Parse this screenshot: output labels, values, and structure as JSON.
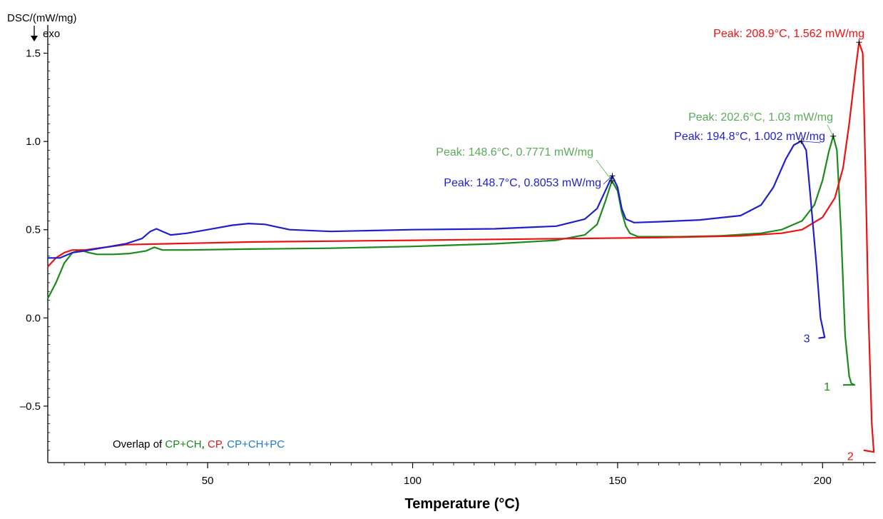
{
  "chart_data": {
    "type": "line",
    "ylabel": "DSC/(mW/mg)",
    "direction_label": "exo",
    "xlabel": "Temperature (°C)",
    "xlim": [
      11,
      213
    ],
    "ylim": [
      -0.82,
      1.66
    ],
    "x_ticks": [
      50,
      100,
      150,
      200
    ],
    "y_ticks": [
      {
        "value": 1.5,
        "label": "1.5"
      },
      {
        "value": 1.0,
        "label": "1.0"
      },
      {
        "value": 0.5,
        "label": "0.5"
      },
      {
        "value": 0.0,
        "label": "0.0"
      },
      {
        "value": -0.5,
        "label": "–0.5"
      }
    ],
    "legend": {
      "prefix": "Overlap of ",
      "items": [
        {
          "text": "CP+CH",
          "color": "#1a8a1a"
        },
        {
          "text": ", ",
          "color": "#000000"
        },
        {
          "text": "CP",
          "color": "#ee1111"
        },
        {
          "text": ", ",
          "color": "#000000"
        },
        {
          "text": "CP+CH+PC",
          "color": "#1f78c8"
        }
      ]
    },
    "series": [
      {
        "label": "1",
        "color": "#1a8a1a",
        "points": [
          [
            11,
            0.11
          ],
          [
            13,
            0.2
          ],
          [
            15,
            0.31
          ],
          [
            17,
            0.37
          ],
          [
            19,
            0.385
          ],
          [
            21,
            0.37
          ],
          [
            23,
            0.36
          ],
          [
            27,
            0.36
          ],
          [
            31,
            0.365
          ],
          [
            35,
            0.38
          ],
          [
            37,
            0.4
          ],
          [
            39,
            0.385
          ],
          [
            45,
            0.385
          ],
          [
            60,
            0.39
          ],
          [
            80,
            0.395
          ],
          [
            100,
            0.405
          ],
          [
            120,
            0.42
          ],
          [
            135,
            0.44
          ],
          [
            142,
            0.47
          ],
          [
            145,
            0.53
          ],
          [
            147,
            0.66
          ],
          [
            148.6,
            0.777
          ],
          [
            150,
            0.72
          ],
          [
            151,
            0.6
          ],
          [
            152,
            0.52
          ],
          [
            153,
            0.48
          ],
          [
            155,
            0.46
          ],
          [
            165,
            0.46
          ],
          [
            175,
            0.465
          ],
          [
            185,
            0.48
          ],
          [
            190,
            0.5
          ],
          [
            195,
            0.55
          ],
          [
            198,
            0.64
          ],
          [
            200,
            0.78
          ],
          [
            201.5,
            0.94
          ],
          [
            202.6,
            1.03
          ],
          [
            203.5,
            0.95
          ],
          [
            204.5,
            0.5
          ],
          [
            205.5,
            -0.1
          ],
          [
            206.5,
            -0.33
          ],
          [
            207,
            -0.37
          ],
          [
            207.8,
            -0.38
          ],
          [
            205,
            -0.38
          ]
        ]
      },
      {
        "label": "2",
        "color": "#ee1111",
        "points": [
          [
            11,
            0.29
          ],
          [
            13,
            0.34
          ],
          [
            15,
            0.37
          ],
          [
            17,
            0.385
          ],
          [
            20,
            0.385
          ],
          [
            25,
            0.4
          ],
          [
            30,
            0.415
          ],
          [
            40,
            0.42
          ],
          [
            60,
            0.43
          ],
          [
            80,
            0.435
          ],
          [
            100,
            0.44
          ],
          [
            120,
            0.445
          ],
          [
            140,
            0.45
          ],
          [
            160,
            0.455
          ],
          [
            180,
            0.465
          ],
          [
            190,
            0.48
          ],
          [
            195,
            0.5
          ],
          [
            200,
            0.57
          ],
          [
            203,
            0.68
          ],
          [
            205,
            0.85
          ],
          [
            206.5,
            1.1
          ],
          [
            208,
            1.4
          ],
          [
            208.9,
            1.562
          ],
          [
            209.8,
            1.5
          ],
          [
            210.5,
            0.8
          ],
          [
            211.2,
            0
          ],
          [
            212,
            -0.6
          ],
          [
            212.5,
            -0.76
          ],
          [
            210,
            -0.75
          ]
        ]
      },
      {
        "label": "3",
        "color": "#1f1fcc",
        "points": [
          [
            11,
            0.34
          ],
          [
            14,
            0.34
          ],
          [
            17,
            0.37
          ],
          [
            20,
            0.38
          ],
          [
            25,
            0.4
          ],
          [
            30,
            0.42
          ],
          [
            34,
            0.45
          ],
          [
            36,
            0.49
          ],
          [
            37.5,
            0.505
          ],
          [
            39,
            0.49
          ],
          [
            41,
            0.47
          ],
          [
            45,
            0.48
          ],
          [
            50,
            0.5
          ],
          [
            56,
            0.525
          ],
          [
            60,
            0.535
          ],
          [
            64,
            0.53
          ],
          [
            70,
            0.5
          ],
          [
            80,
            0.49
          ],
          [
            100,
            0.5
          ],
          [
            120,
            0.505
          ],
          [
            135,
            0.52
          ],
          [
            142,
            0.56
          ],
          [
            145,
            0.62
          ],
          [
            147,
            0.72
          ],
          [
            148.7,
            0.805
          ],
          [
            150,
            0.74
          ],
          [
            151,
            0.62
          ],
          [
            152,
            0.56
          ],
          [
            154,
            0.54
          ],
          [
            160,
            0.545
          ],
          [
            170,
            0.555
          ],
          [
            180,
            0.58
          ],
          [
            185,
            0.64
          ],
          [
            188,
            0.74
          ],
          [
            191,
            0.9
          ],
          [
            193,
            0.98
          ],
          [
            194.8,
            1.002
          ],
          [
            196,
            0.95
          ],
          [
            197,
            0.7
          ],
          [
            198.5,
            0.3
          ],
          [
            199.5,
            0
          ],
          [
            200.5,
            -0.11
          ],
          [
            199,
            -0.115
          ]
        ]
      }
    ],
    "annotations": [
      {
        "text": "Peak: 208.9°C, 1.562 mW/mg",
        "color": "#ee1111",
        "x": 208.9,
        "y": 1.562
      },
      {
        "text": "Peak: 202.6°C, 1.03 mW/mg",
        "color": "#5aaa5a",
        "x": 202.6,
        "y": 1.03
      },
      {
        "text": "Peak: 194.8°C, 1.002 mW/mg",
        "color": "#1f1fcc",
        "x": 194.8,
        "y": 1.002
      },
      {
        "text": "Peak: 148.6°C, 0.7771 mW/mg",
        "color": "#5aaa5a",
        "x": 148.6,
        "y": 0.777
      },
      {
        "text": "Peak: 148.7°C, 0.8053 mW/mg",
        "color": "#1f1fcc",
        "x": 148.7,
        "y": 0.805
      }
    ]
  }
}
